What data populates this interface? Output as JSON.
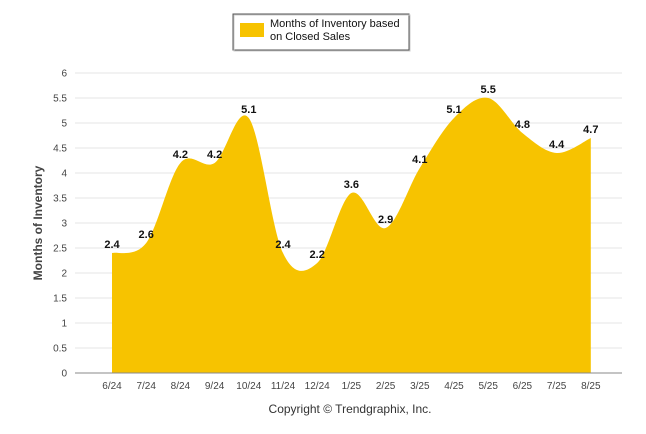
{
  "chart_data": {
    "type": "area",
    "legend": [
      "Months of Inventory based",
      "on Closed Sales"
    ],
    "legend_position": "top-center",
    "ylabel": "Months of Inventory",
    "xlabel": "",
    "categories": [
      "6/24",
      "7/24",
      "8/24",
      "9/24",
      "10/24",
      "11/24",
      "12/24",
      "1/25",
      "2/25",
      "3/25",
      "4/25",
      "5/25",
      "6/25",
      "7/25",
      "8/25"
    ],
    "values": [
      2.4,
      2.6,
      4.2,
      4.2,
      5.1,
      2.4,
      2.2,
      3.6,
      2.9,
      4.1,
      5.1,
      5.5,
      4.8,
      4.4,
      4.7
    ],
    "data_labels": [
      "2.4",
      "2.6",
      "4.2",
      "4.2",
      "5.1",
      "2.4",
      "2.2",
      "3.6",
      "2.9",
      "4.1",
      "5.1",
      "5.5",
      "4.8",
      "4.4",
      "4.7"
    ],
    "ylim": [
      0,
      6
    ],
    "yticks": [
      "0",
      "0.5",
      "1",
      "1.5",
      "2",
      "2.5",
      "3",
      "3.5",
      "4",
      "4.5",
      "5",
      "5.5",
      "6"
    ],
    "grid": true,
    "fill_color": "#f7c300"
  },
  "footer": "Copyright © Trendgraphix, Inc."
}
